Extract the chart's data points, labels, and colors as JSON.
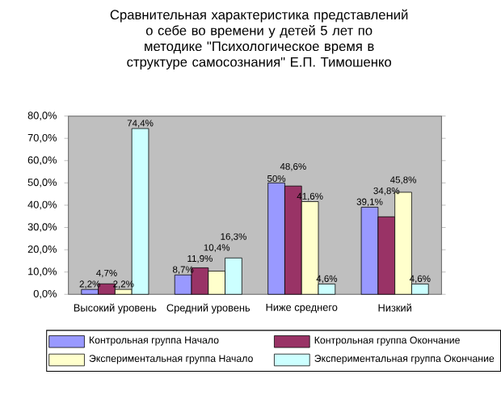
{
  "chart_data": {
    "type": "bar",
    "title": "Сравнительная характеристика представлений о себе во времени у детей 5 лет по методике \"Психологическое время в структуре самосознания\" Е.П. Тимошенко",
    "categories": [
      "Высокий уровень",
      "Средний уровень",
      "Ниже среднего",
      "Низкий"
    ],
    "series": [
      {
        "name": "Контрольная группа Начало",
        "color": "#9999ff",
        "values": [
          2.2,
          8.7,
          50,
          39.1
        ],
        "value_labels": [
          "2,2%",
          "8,7%",
          "50%",
          "39,1%"
        ]
      },
      {
        "name": "Контрольная группа Окончание",
        "color": "#993366",
        "values": [
          4.7,
          11.9,
          48.6,
          34.8
        ],
        "value_labels": [
          "4,7%",
          "11,9%",
          "48,6%",
          "34,8%"
        ]
      },
      {
        "name": "Экспериментальная группа Начало",
        "color": "#ffffcc",
        "values": [
          2.2,
          10.4,
          41.6,
          45.8
        ],
        "value_labels": [
          "2,2%",
          "10,4%",
          "41,6%",
          "45,8%"
        ]
      },
      {
        "name": "Экспериментальная группа Окончание",
        "color": "#ccffff",
        "values": [
          74.4,
          16.3,
          4.6,
          4.6
        ],
        "value_labels": [
          "74,4%",
          "16,3%",
          "4,6%",
          "4,6%"
        ]
      }
    ],
    "ylim": [
      0,
      80
    ],
    "yticks": [
      {
        "value": 0,
        "label": "0,0%"
      },
      {
        "value": 10,
        "label": "10,0%"
      },
      {
        "value": 20,
        "label": "20,0%"
      },
      {
        "value": 30,
        "label": "30,0%"
      },
      {
        "value": 40,
        "label": "40,0%"
      },
      {
        "value": 50,
        "label": "50,0%"
      },
      {
        "value": 60,
        "label": "60,0%"
      },
      {
        "value": 70,
        "label": "70,0%"
      },
      {
        "value": 80,
        "label": "80,0%"
      }
    ],
    "legend": "bottom"
  }
}
